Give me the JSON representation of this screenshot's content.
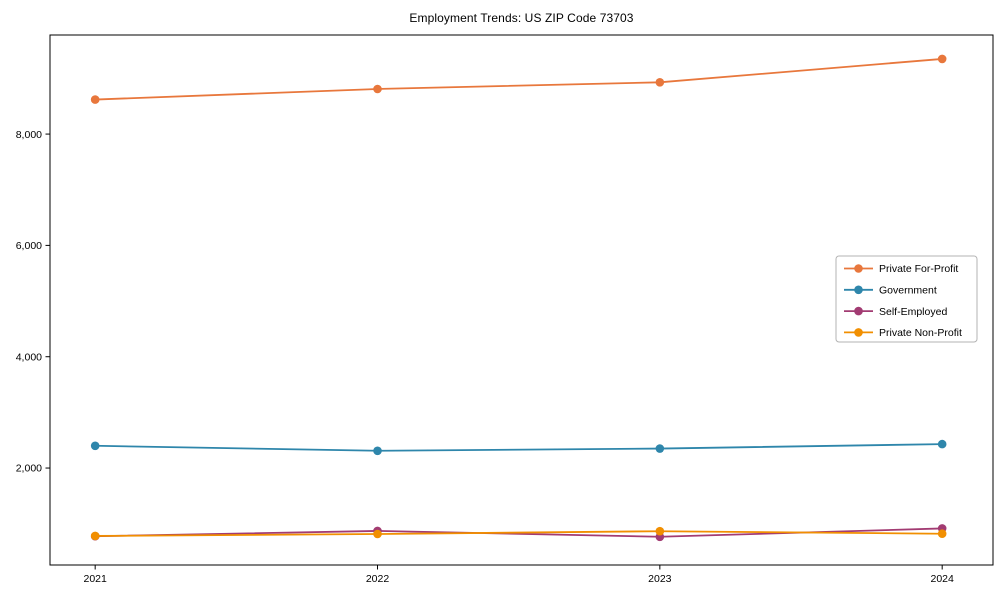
{
  "chart_data": {
    "type": "line",
    "title": "Employment Trends: US ZIP Code 73703",
    "x": [
      2021,
      2022,
      2023,
      2024
    ],
    "xtick_labels": [
      "2021",
      "2022",
      "2023",
      "2024"
    ],
    "yticks": [
      2000,
      4000,
      6000,
      8000
    ],
    "ytick_labels": [
      "2,000",
      "4,000",
      "6,000",
      "8,000"
    ],
    "xlim": [
      2020.84,
      2024.18
    ],
    "ylim": [
      258,
      9780
    ],
    "grid": false,
    "marker": "o",
    "series": [
      {
        "name": "Private For-Profit",
        "color": "#E8773C",
        "values": [
          8620,
          8810,
          8930,
          9350
        ]
      },
      {
        "name": "Government",
        "color": "#2E86AB",
        "values": [
          2400,
          2310,
          2350,
          2430
        ]
      },
      {
        "name": "Self-Employed",
        "color": "#A23B72",
        "values": [
          775,
          870,
          765,
          915
        ]
      },
      {
        "name": "Private Non-Profit",
        "color": "#F18F01",
        "values": [
          780,
          815,
          865,
          820
        ]
      }
    ],
    "legend": {
      "position": "center right",
      "entries": [
        "Private For-Profit",
        "Government",
        "Self-Employed",
        "Private Non-Profit"
      ]
    },
    "axis_color": "#000000",
    "legend_border_color": "#b3b3b3"
  }
}
